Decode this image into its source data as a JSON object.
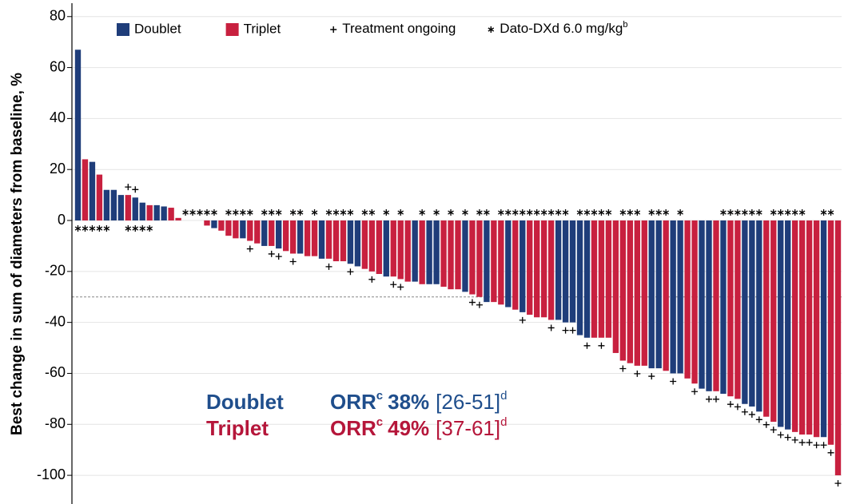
{
  "chart_data": {
    "type": "waterfall",
    "y_label": "Best change in sum of diameters from baseline, %",
    "ylim": [
      -110,
      84
    ],
    "yticks": [
      -100,
      -80,
      -60,
      -40,
      -20,
      0,
      20,
      40,
      60,
      80
    ],
    "grid": true,
    "reference_line": -30,
    "series": [
      {
        "name": "Doublet",
        "color": "#1f3d7a",
        "values": [
          67,
          null,
          23,
          null,
          12,
          12,
          10,
          null,
          9,
          7,
          null,
          6,
          5.5,
          null,
          null,
          0,
          0,
          null,
          null,
          -3,
          null,
          null,
          null,
          -7,
          null,
          null,
          -10,
          null,
          -11,
          null,
          null,
          -13,
          null,
          null,
          -15,
          null,
          null,
          null,
          -17,
          -18,
          null,
          null,
          null,
          -22,
          null,
          null,
          null,
          -24,
          null,
          -25,
          -25,
          null,
          null,
          null,
          -28,
          null,
          null,
          -32,
          null,
          null,
          -34,
          null,
          -36,
          null,
          null,
          null,
          null,
          -39,
          -40,
          -40,
          -45,
          -46,
          null,
          null,
          null,
          null,
          null,
          null,
          null,
          null,
          -58,
          -58,
          null,
          -60,
          -60,
          null,
          null,
          -66,
          -67,
          null,
          -68,
          null,
          null,
          -72,
          -73,
          -75,
          null,
          null,
          -81,
          -82,
          null,
          null,
          null,
          null,
          -85,
          null,
          null
        ]
      },
      {
        "name": "Triplet",
        "color": "#c8203f",
        "values": [
          null,
          24,
          null,
          18,
          null,
          null,
          null,
          10,
          null,
          null,
          6,
          null,
          null,
          5,
          1,
          null,
          null,
          0,
          -2,
          null,
          -4,
          -6,
          -7,
          null,
          -8,
          -9,
          null,
          -10,
          null,
          -12,
          -13,
          null,
          -14,
          -14,
          null,
          -15,
          -16,
          -16,
          null,
          null,
          -19,
          -20,
          -21,
          null,
          -22,
          -23,
          -24,
          null,
          -25,
          null,
          null,
          -26,
          -27,
          -27,
          null,
          -29,
          -30,
          null,
          -32,
          -33,
          null,
          -35,
          null,
          -37,
          -38,
          -38,
          -39,
          null,
          null,
          null,
          null,
          null,
          -46,
          -46,
          -46,
          -52,
          -55,
          -56,
          -57,
          -57,
          null,
          null,
          -59,
          null,
          null,
          -62,
          -64,
          null,
          null,
          -67,
          null,
          -69,
          -70,
          null,
          null,
          null,
          -77,
          -79,
          null,
          null,
          -83,
          -84,
          -84,
          -85,
          null,
          -88,
          -100
        ]
      }
    ],
    "markers": [
      {
        "name": "Treatment ongoing",
        "shape": "plus",
        "bars": [
          7,
          8,
          24,
          27,
          28,
          30,
          35,
          38,
          41,
          44,
          45,
          55,
          56,
          62,
          66,
          68,
          69,
          71,
          73,
          76,
          78,
          80,
          83,
          86,
          88,
          89,
          91,
          92,
          93,
          94,
          95,
          96,
          97,
          98,
          99,
          100,
          101,
          102,
          103,
          104,
          105,
          106
        ]
      },
      {
        "name": "Dato-DXd 6.0 mg/kg",
        "name_sup": "b",
        "shape": "asterisk",
        "bars": [
          0,
          1,
          2,
          3,
          4,
          7,
          8,
          9,
          10,
          15,
          16,
          17,
          18,
          19,
          21,
          22,
          23,
          24,
          26,
          27,
          28,
          30,
          31,
          33,
          35,
          36,
          37,
          38,
          40,
          41,
          43,
          45,
          48,
          50,
          52,
          54,
          56,
          57,
          59,
          60,
          61,
          62,
          63,
          64,
          65,
          66,
          67,
          68,
          70,
          71,
          72,
          73,
          74,
          76,
          77,
          78,
          80,
          81,
          82,
          84,
          90,
          91,
          92,
          93,
          94,
          95,
          97,
          98,
          99,
          100,
          101,
          104,
          105
        ]
      }
    ],
    "annotations": [
      {
        "arm": "Doublet",
        "metric": "ORR",
        "metric_sup": "c",
        "rate": "38%",
        "ci": "[26-51]",
        "ci_sup": "d",
        "color": "#1f4e8c"
      },
      {
        "arm": "Triplet",
        "metric": "ORR",
        "metric_sup": "c",
        "rate": "49%",
        "ci": "[37-61]",
        "ci_sup": "d",
        "color": "#b5163a"
      }
    ]
  }
}
